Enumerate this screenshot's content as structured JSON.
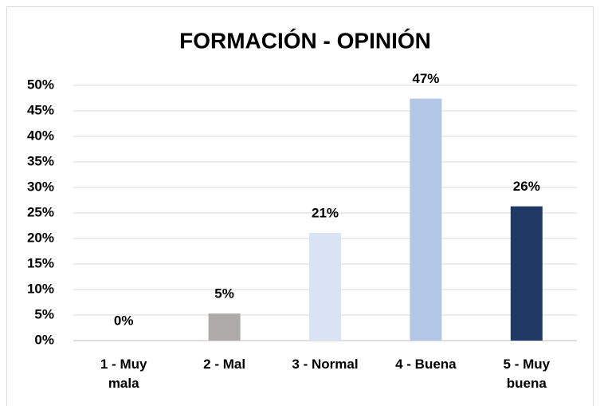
{
  "chart_data": {
    "type": "bar",
    "title": "FORMACIÓN - OPINIÓN",
    "categories": [
      "1 - Muy\nmala",
      "2 - Mal",
      "3 - Normal",
      "4 - Buena",
      "5 - Muy\nbuena"
    ],
    "values": [
      0,
      5.3,
      21.1,
      47.4,
      26.3
    ],
    "value_labels": [
      "0%",
      "5%",
      "21%",
      "47%",
      "26%"
    ],
    "colors": [
      "#a6a6a6",
      "#aeaaaa",
      "#dae3f3",
      "#b4c7e7",
      "#203864"
    ],
    "ylim": [
      0,
      50
    ],
    "yticks": [
      {
        "value": 0,
        "label": "0%"
      },
      {
        "value": 5,
        "label": "5%"
      },
      {
        "value": 10,
        "label": "10%"
      },
      {
        "value": 15,
        "label": "15%"
      },
      {
        "value": 20,
        "label": "20%"
      },
      {
        "value": 25,
        "label": "25%"
      },
      {
        "value": 30,
        "label": "30%"
      },
      {
        "value": 35,
        "label": "35%"
      },
      {
        "value": 40,
        "label": "40%"
      },
      {
        "value": 45,
        "label": "45%"
      },
      {
        "value": 50,
        "label": "50%"
      }
    ],
    "grid": true
  }
}
